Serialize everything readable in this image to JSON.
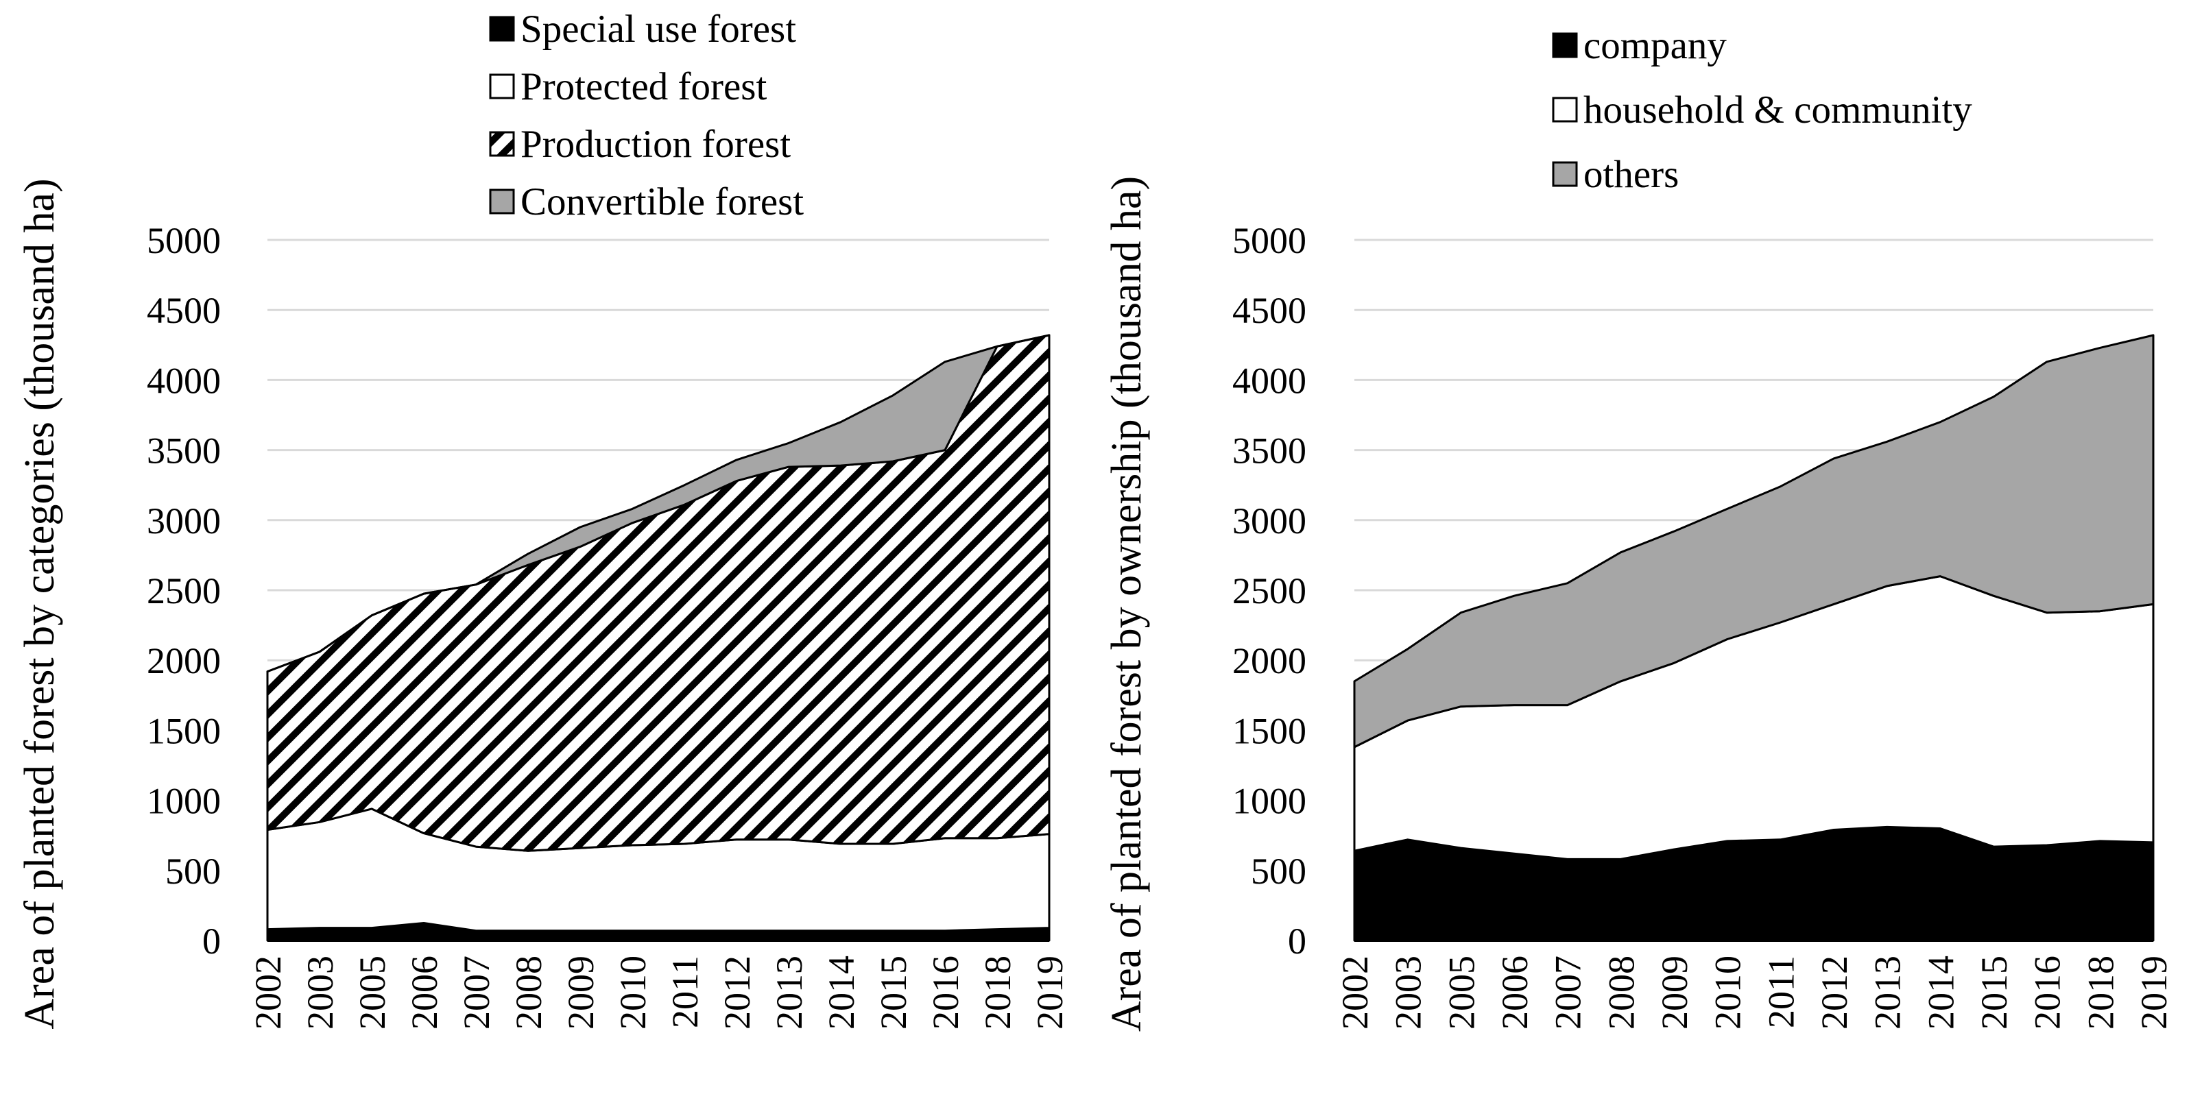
{
  "chart_data": [
    {
      "type": "area",
      "stacked": true,
      "categories": [
        "2002",
        "2003",
        "2005",
        "2006",
        "2007",
        "2008",
        "2009",
        "2010",
        "2011",
        "2012",
        "2013",
        "2014",
        "2015",
        "2016",
        "2018",
        "2019"
      ],
      "ylabel": "Area of planted forest by categories (thousand ha)",
      "xlabel": "",
      "ylim": [
        0,
        5000
      ],
      "yticks": [
        0,
        500,
        1000,
        1500,
        2000,
        2500,
        3000,
        3500,
        4000,
        4500,
        5000
      ],
      "grid": true,
      "legend_position": "top",
      "series": [
        {
          "name": "Special use forest",
          "fill": "solid-black",
          "values": [
            80,
            90,
            90,
            125,
            70,
            70,
            70,
            70,
            70,
            70,
            70,
            70,
            70,
            70,
            80,
            90
          ]
        },
        {
          "name": "Protected forest",
          "fill": "white",
          "values": [
            710,
            755,
            850,
            640,
            600,
            570,
            590,
            610,
            620,
            650,
            650,
            620,
            620,
            660,
            650,
            670
          ]
        },
        {
          "name": "Production forest",
          "fill": "hatched",
          "values": [
            1130,
            1215,
            1380,
            1710,
            1870,
            2040,
            2150,
            2300,
            2420,
            2560,
            2660,
            2700,
            2730,
            2770,
            3510,
            3560
          ]
        },
        {
          "name": "Convertible forest",
          "fill": "gray",
          "values": [
            0,
            0,
            0,
            0,
            0,
            80,
            140,
            100,
            140,
            150,
            170,
            310,
            470,
            630,
            0,
            0
          ]
        }
      ]
    },
    {
      "type": "area",
      "stacked": true,
      "categories": [
        "2002",
        "2003",
        "2005",
        "2006",
        "2007",
        "2008",
        "2009",
        "2010",
        "2011",
        "2012",
        "2013",
        "2014",
        "2015",
        "2016",
        "2018",
        "2019"
      ],
      "ylabel": "Area of planted forest by ownership (thousand ha)",
      "xlabel": "",
      "ylim": [
        0,
        5000
      ],
      "yticks": [
        0,
        500,
        1000,
        1500,
        2000,
        2500,
        3000,
        3500,
        4000,
        4500,
        5000
      ],
      "grid": true,
      "legend_position": "top",
      "series": [
        {
          "name": "company",
          "fill": "solid-black",
          "values": [
            640,
            720,
            660,
            620,
            580,
            580,
            650,
            710,
            720,
            790,
            810,
            800,
            670,
            680,
            710,
            700
          ]
        },
        {
          "name": "household & community",
          "fill": "white",
          "values": [
            740,
            850,
            1010,
            1060,
            1100,
            1270,
            1330,
            1440,
            1550,
            1610,
            1720,
            1800,
            1790,
            1660,
            1640,
            1700
          ]
        },
        {
          "name": "others",
          "fill": "gray",
          "values": [
            470,
            510,
            670,
            780,
            870,
            920,
            940,
            930,
            970,
            1040,
            1030,
            1100,
            1420,
            1790,
            1880,
            1920
          ]
        }
      ]
    }
  ]
}
